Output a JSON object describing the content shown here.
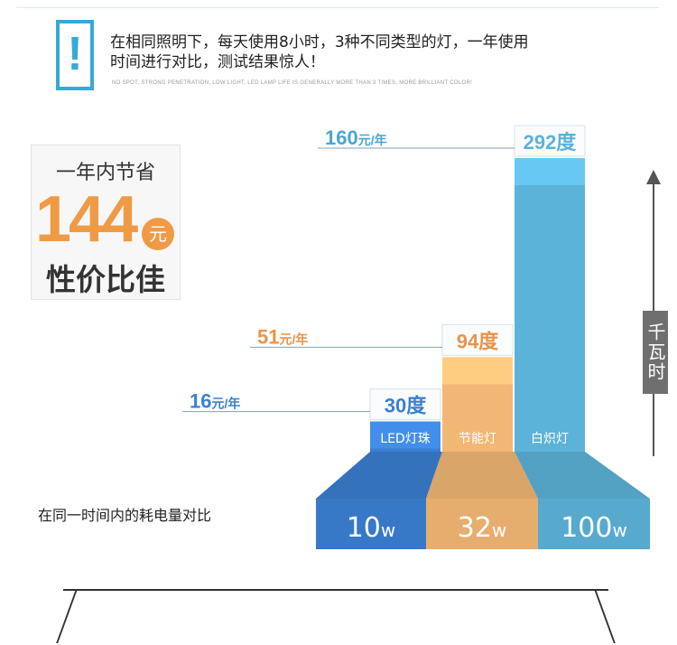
{
  "header": {
    "alert_mark": "!",
    "headline": "在相同照明下，每天使用8小时，3种不同类型的灯，一年使用时间进行对比，测试结果惊人！",
    "subline": "NO SPOT, STRONG PENETRATION, LOW LIGHT, LED LAMP LIFE IS GENERALLY MORE THAN 3 TIMES, MORE BRILLIANT COLOR!"
  },
  "badge": {
    "title": "一年内节省",
    "amount": "144",
    "unit": "元",
    "footer": "性价比佳"
  },
  "unit_label": "千瓦时",
  "compare_note": "在同一时间内的耗电量对比",
  "colors": {
    "led": "#3b7fd1",
    "cfl": "#f2b774",
    "incandescent": "#5cb3d9",
    "bar_text": "#ffffff"
  },
  "chart_data": {
    "type": "bar",
    "categories": [
      "LED灯珠",
      "节能灯",
      "白炽灯"
    ],
    "values": [
      30,
      94,
      292
    ],
    "value_labels": [
      "30度",
      "94度",
      "292度"
    ],
    "cost_labels": [
      "16元/年",
      "51元/年",
      "160元/年"
    ],
    "power_labels": [
      "10w",
      "32w",
      "100w"
    ],
    "ylabel": "千瓦时"
  }
}
